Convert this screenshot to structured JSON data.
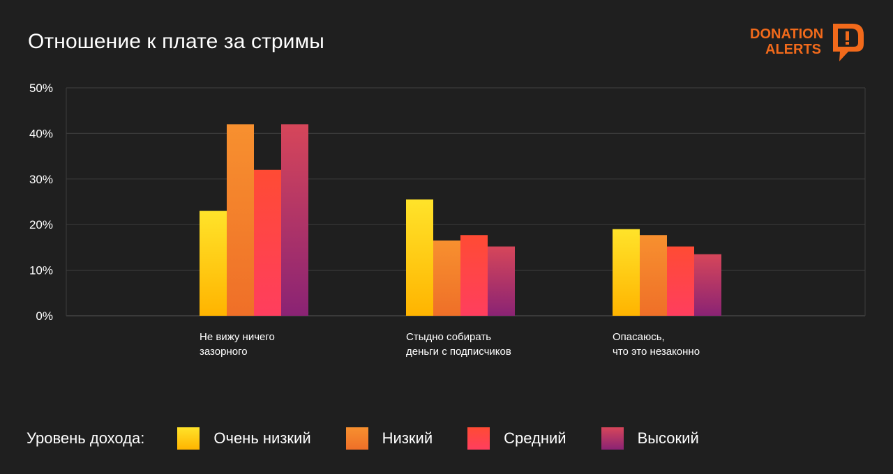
{
  "title": "Отношение к плате за стримы",
  "logo": {
    "line1": "DONATION",
    "line2": "ALERTS",
    "mark": "D!"
  },
  "legend": {
    "title": "Уровень дохода:"
  },
  "colors": {
    "background": "#1f1f1f",
    "grid": "#3a3a3a",
    "axis_text": "#ffffff",
    "logo": "#f26a1b"
  },
  "chart_data": {
    "type": "bar",
    "title": "Отношение к плате за стримы",
    "categories": [
      [
        "Не вижу ничего",
        "зазорного"
      ],
      [
        "Стыдно собирать",
        "деньги с подписчиков"
      ],
      [
        "Опасаюсь,",
        "что это незаконно"
      ]
    ],
    "series": [
      {
        "name": "Очень низкий",
        "values": [
          23,
          25.5,
          19
        ],
        "gradient": [
          "#ffe32a",
          "#ffb400"
        ]
      },
      {
        "name": "Низкий",
        "values": [
          42,
          16.5,
          17.7
        ],
        "gradient": [
          "#f7902f",
          "#ef6f28"
        ]
      },
      {
        "name": "Средний",
        "values": [
          32,
          17.7,
          15.2
        ],
        "gradient": [
          "#ff4b34",
          "#ff3e5e"
        ]
      },
      {
        "name": "Высокий",
        "values": [
          42,
          15.2,
          13.5
        ],
        "gradient": [
          "#d6465a",
          "#8a2374"
        ]
      }
    ],
    "yticks": [
      "0%",
      "10%",
      "20%",
      "30%",
      "40%",
      "50%"
    ],
    "ylim": [
      0,
      50
    ],
    "grid": true,
    "legend_position": "bottom"
  }
}
